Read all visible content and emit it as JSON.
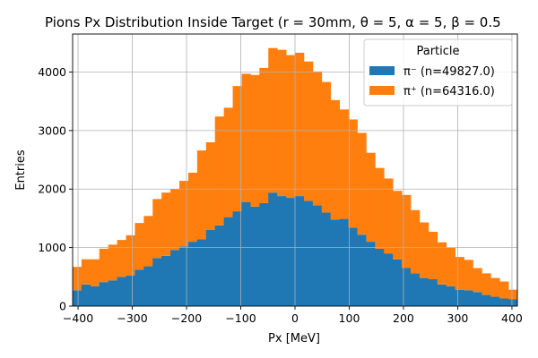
{
  "chart_data": {
    "type": "bar",
    "stacked": true,
    "title": "Pions Px Distribution Inside Target (r = 30mm, θ = 5, α = 5, β = 0.5",
    "xlabel": "Px [MeV]",
    "ylabel": "Entries",
    "xlim": [
      -410,
      410
    ],
    "ylim": [
      0,
      4650
    ],
    "xticks": [
      -400,
      -300,
      -200,
      -100,
      0,
      100,
      200,
      300,
      400
    ],
    "yticks": [
      0,
      1000,
      2000,
      3000,
      4000
    ],
    "grid": true,
    "legend": {
      "title": "Particle",
      "placement": "top-right"
    },
    "bin_start": -410,
    "bin_width": 16.4,
    "series": [
      {
        "name": "π⁻  (n=49827.0)",
        "color": "#1f77b4",
        "values": [
          270,
          370,
          340,
          410,
          440,
          500,
          520,
          620,
          680,
          820,
          860,
          960,
          1020,
          1100,
          1140,
          1300,
          1380,
          1520,
          1620,
          1780,
          1700,
          1760,
          1940,
          1880,
          1850,
          1880,
          1800,
          1720,
          1600,
          1480,
          1490,
          1340,
          1220,
          1100,
          980,
          900,
          800,
          650,
          560,
          480,
          460,
          370,
          340,
          280,
          270,
          240,
          190,
          160,
          130,
          120
        ]
      },
      {
        "name": "π⁺  (n=64316.0)",
        "color": "#ff7f0e",
        "values": [
          400,
          430,
          460,
          570,
          610,
          630,
          690,
          800,
          860,
          1010,
          1080,
          1040,
          1120,
          1180,
          1520,
          1500,
          1860,
          1870,
          2140,
          2190,
          2250,
          2310,
          2470,
          2500,
          2440,
          2450,
          2380,
          2290,
          2230,
          2040,
          1870,
          1850,
          1740,
          1520,
          1380,
          1280,
          1170,
          1250,
          1080,
          950,
          810,
          720,
          660,
          560,
          520,
          410,
          370,
          320,
          290,
          160
        ]
      }
    ]
  }
}
